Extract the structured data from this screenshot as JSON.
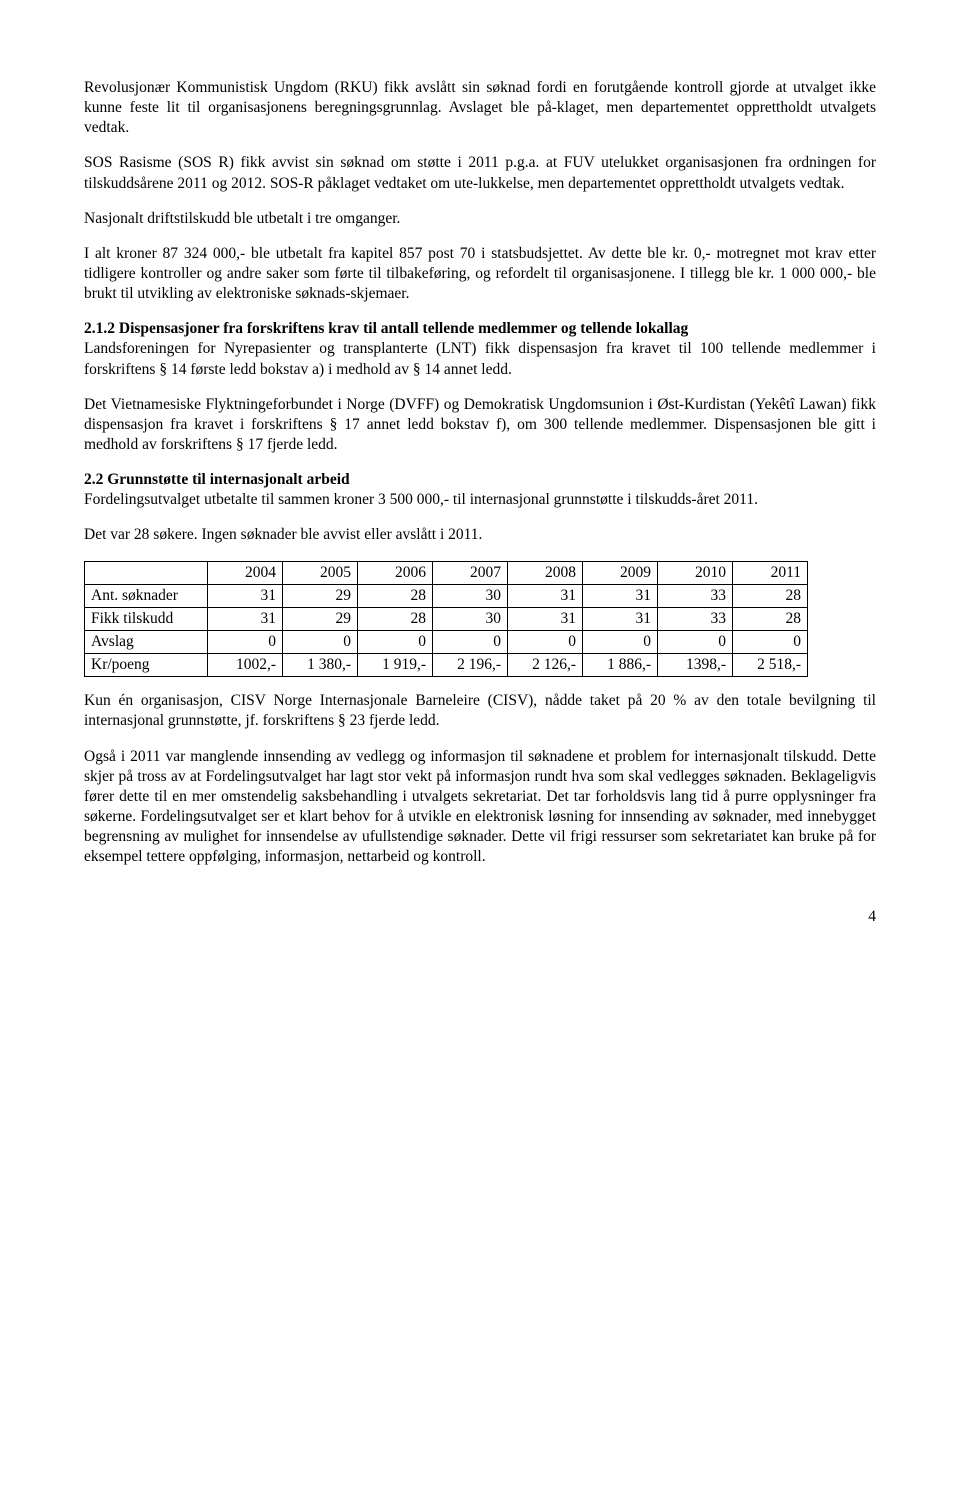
{
  "para1": "Revolusjonær Kommunistisk Ungdom (RKU) fikk avslått sin søknad fordi en forutgående kontroll gjorde at utvalget ikke kunne feste lit til organisasjonens beregningsgrunnlag. Avslaget ble på-klaget, men departementet opprettholdt utvalgets vedtak.",
  "para2": "SOS Rasisme (SOS R) fikk avvist sin søknad om støtte i 2011 p.g.a. at FUV utelukket organisasjonen fra ordningen for tilskuddsårene 2011 og 2012. SOS-R påklaget vedtaket om ute-lukkelse, men departementet opprettholdt utvalgets vedtak.",
  "para3": "Nasjonalt driftstilskudd ble utbetalt i tre omganger.",
  "para4": "I alt kroner 87 324 000,- ble utbetalt fra kapitel 857 post 70 i statsbudsjettet. Av dette ble kr. 0,- motregnet mot krav etter tidligere kontroller og andre saker som førte til tilbakeføring, og refordelt til organisasjonene. I tillegg ble kr. 1 000 000,- ble brukt til utvikling av elektroniske søknads-skjemaer.",
  "heading212": "2.1.2 Dispensasjoner fra forskriftens krav til antall tellende medlemmer og tellende lokallag",
  "para5b": "Landsforeningen for Nyrepasienter og transplanterte (LNT) fikk dispensasjon fra kravet til 100 tellende medlemmer i forskriftens § 14 første ledd bokstav a) i medhold av § 14 annet ledd.",
  "para6": "Det Vietnamesiske Flyktningeforbundet i Norge (DVFF) og Demokratisk Ungdomsunion i Øst-Kurdistan (Yekêtî Lawan) fikk dispensasjon fra kravet i forskriftens § 17 annet ledd bokstav f), om 300 tellende medlemmer. Dispensasjonen ble gitt i medhold av forskriftens § 17 fjerde ledd.",
  "heading22": "2.2 Grunnstøtte til internasjonalt arbeid",
  "para7b": "Fordelingsutvalget utbetalte til sammen kroner 3 500 000,- til internasjonal grunnstøtte i tilskudds-året 2011.",
  "para8": "Det var 28 søkere. Ingen søknader ble avvist eller avslått i 2011.",
  "table": {
    "years": [
      "2004",
      "2005",
      "2006",
      "2007",
      "2008",
      "2009",
      "2010",
      "2011"
    ],
    "rows": [
      {
        "label": "Ant. søknader",
        "vals": [
          "31",
          "29",
          "28",
          "30",
          "31",
          "31",
          "33",
          "28"
        ]
      },
      {
        "label": "Fikk tilskudd",
        "vals": [
          "31",
          "29",
          "28",
          "30",
          "31",
          "31",
          "33",
          "28"
        ]
      },
      {
        "label": "Avslag",
        "vals": [
          "0",
          "0",
          "0",
          "0",
          "0",
          "0",
          "0",
          "0"
        ]
      },
      {
        "label": "Kr/poeng",
        "vals": [
          "1002,-",
          "1 380,-",
          "1 919,-",
          "2 196,-",
          "2 126,-",
          "1 886,-",
          "1398,-",
          "2 518,-"
        ]
      }
    ]
  },
  "para9": "Kun én organisasjon, CISV Norge Internasjonale Barneleire (CISV), nådde taket på 20 % av den totale bevilgning til internasjonal grunnstøtte, jf. forskriftens § 23 fjerde ledd.",
  "para10": "Også i 2011 var manglende innsending av vedlegg og informasjon til søknadene et problem for internasjonalt tilskudd. Dette skjer på tross av at Fordelingsutvalget har lagt stor vekt på informasjon rundt hva som skal vedlegges søknaden. Beklageligvis fører dette til en mer omstendelig saksbehandling i utvalgets sekretariat. Det tar forholdsvis lang tid å purre opplysninger fra søkerne. Fordelingsutvalget ser et klart behov for å utvikle en elektronisk løsning for innsending av søknader, med innebygget begrensning av mulighet for innsendelse av ufullstendige søknader. Dette vil frigi ressurser som sekretariatet kan bruke på for eksempel tettere oppfølging, informasjon, nettarbeid og kontroll.",
  "pagenum": "4"
}
